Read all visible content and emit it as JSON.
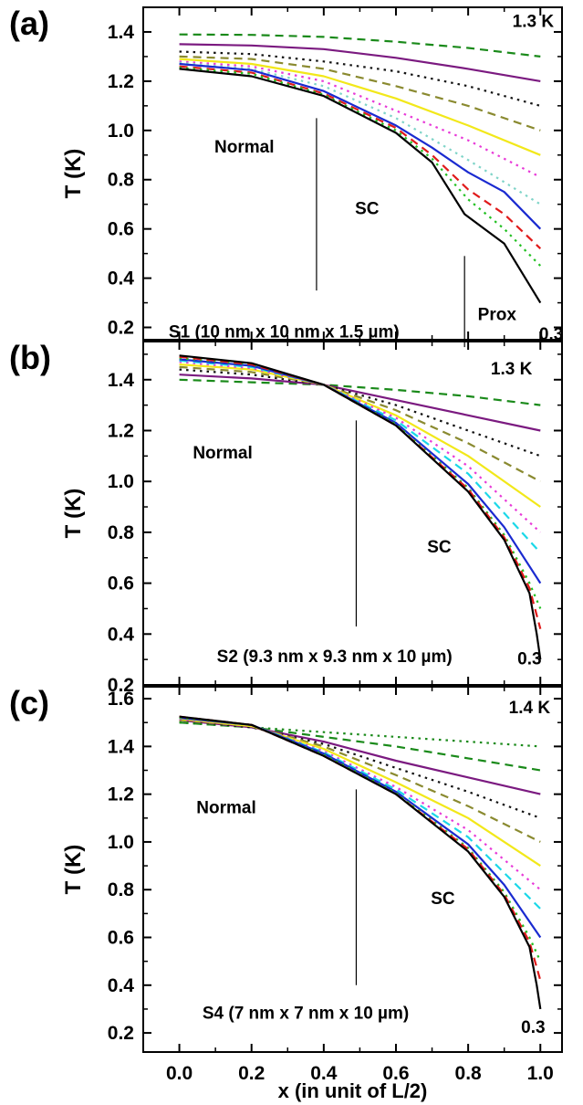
{
  "chart_data": [
    {
      "panel_label": "(a)",
      "type": "line",
      "xlabel": "",
      "ylabel": "T (K)",
      "xlim": [
        -0.1,
        1.06
      ],
      "ylim": [
        0.15,
        1.5
      ],
      "xticks": [
        0.0,
        0.2,
        0.4,
        0.6,
        0.8,
        1.0
      ],
      "yticks": [
        0.2,
        0.4,
        0.6,
        0.8,
        1.0,
        1.2,
        1.4
      ],
      "annotations": [
        {
          "text": "1.3 K",
          "x": 0.98,
          "y": 1.42
        },
        {
          "text": "Normal",
          "x": 0.18,
          "y": 0.91
        },
        {
          "text": "SC",
          "x": 0.52,
          "y": 0.66
        },
        {
          "text": "Prox",
          "x": 0.88,
          "y": 0.23
        },
        {
          "text": "S1 (10 nm x 10 nm x 1.5 µm)",
          "x": 0.29,
          "y": 0.16
        },
        {
          "text": "0.3",
          "x": 1.03,
          "y": 0.15
        }
      ],
      "vlines": [
        {
          "x": 0.38,
          "y0": 0.35,
          "y1": 1.05
        },
        {
          "x": 0.79,
          "y0": 0.12,
          "y1": 0.49
        }
      ],
      "series": [
        {
          "color": "#1a8a1a",
          "dash": "dash",
          "x": [
            0,
            0.2,
            0.4,
            0.6,
            0.8,
            1.0
          ],
          "y": [
            1.39,
            1.388,
            1.38,
            1.36,
            1.335,
            1.3
          ]
        },
        {
          "color": "#7b1a80",
          "dash": "solid",
          "x": [
            0,
            0.2,
            0.4,
            0.6,
            0.8,
            1.0
          ],
          "y": [
            1.35,
            1.345,
            1.33,
            1.295,
            1.25,
            1.2
          ]
        },
        {
          "color": "#111111",
          "dash": "dot",
          "x": [
            0,
            0.2,
            0.4,
            0.6,
            0.8,
            1.0
          ],
          "y": [
            1.32,
            1.31,
            1.28,
            1.24,
            1.18,
            1.1
          ]
        },
        {
          "color": "#8a8a30",
          "dash": "dash",
          "x": [
            0,
            0.2,
            0.4,
            0.6,
            0.8,
            1.0
          ],
          "y": [
            1.3,
            1.29,
            1.25,
            1.18,
            1.1,
            1.0
          ]
        },
        {
          "color": "#f2e81a",
          "dash": "solid",
          "x": [
            0,
            0.2,
            0.4,
            0.6,
            0.8,
            1.0
          ],
          "y": [
            1.29,
            1.27,
            1.22,
            1.13,
            1.02,
            0.9
          ]
        },
        {
          "color": "#e83ad8",
          "dash": "dot",
          "x": [
            0,
            0.2,
            0.4,
            0.6,
            0.8,
            1.0
          ],
          "y": [
            1.28,
            1.26,
            1.2,
            1.08,
            0.96,
            0.81
          ]
        },
        {
          "color": "#7fd4c8",
          "dash": "dot",
          "x": [
            0,
            0.2,
            0.4,
            0.6,
            0.8,
            1.0
          ],
          "y": [
            1.275,
            1.25,
            1.18,
            1.05,
            0.88,
            0.7
          ]
        },
        {
          "color": "#1a2ad0",
          "dash": "solid",
          "x": [
            0,
            0.2,
            0.4,
            0.6,
            0.7,
            0.8,
            0.9,
            1.0
          ],
          "y": [
            1.27,
            1.245,
            1.16,
            1.02,
            0.93,
            0.83,
            0.75,
            0.6
          ]
        },
        {
          "color": "#e01a1a",
          "dash": "dash",
          "x": [
            0,
            0.2,
            0.4,
            0.6,
            0.7,
            0.8,
            0.9,
            1.0
          ],
          "y": [
            1.26,
            1.235,
            1.15,
            1.01,
            0.9,
            0.76,
            0.66,
            0.52
          ]
        },
        {
          "color": "#22c022",
          "dash": "dot",
          "x": [
            0,
            0.2,
            0.4,
            0.6,
            0.7,
            0.8,
            0.9,
            1.0
          ],
          "y": [
            1.255,
            1.23,
            1.145,
            1.0,
            0.885,
            0.72,
            0.6,
            0.45
          ]
        },
        {
          "color": "#000000",
          "dash": "solid",
          "x": [
            0,
            0.2,
            0.4,
            0.6,
            0.7,
            0.79,
            0.9,
            1.0
          ],
          "y": [
            1.25,
            1.22,
            1.14,
            0.99,
            0.87,
            0.66,
            0.54,
            0.3
          ]
        }
      ]
    },
    {
      "panel_label": "(b)",
      "type": "line",
      "xlabel": "",
      "ylabel": "T (K)",
      "xlim": [
        -0.1,
        1.06
      ],
      "ylim": [
        0.2,
        1.55
      ],
      "xticks": [
        0.0,
        0.2,
        0.4,
        0.6,
        0.8,
        1.0
      ],
      "yticks": [
        0.2,
        0.4,
        0.6,
        0.8,
        1.0,
        1.2,
        1.4
      ],
      "annotations": [
        {
          "text": "1.3 K",
          "x": 0.92,
          "y": 1.42
        },
        {
          "text": "Normal",
          "x": 0.12,
          "y": 1.09
        },
        {
          "text": "SC",
          "x": 0.72,
          "y": 0.72
        },
        {
          "text": "S2 (9.3 nm x 9.3 nm x 10 µm)",
          "x": 0.43,
          "y": 0.29
        },
        {
          "text": "0.3",
          "x": 0.97,
          "y": 0.28
        }
      ],
      "vlines": [
        {
          "x": 0.49,
          "y0": 0.43,
          "y1": 1.24
        }
      ],
      "series": [
        {
          "color": "#1a8a1a",
          "dash": "dash",
          "x": [
            0,
            0.2,
            0.4,
            0.6,
            0.8,
            1.0
          ],
          "y": [
            1.4,
            1.39,
            1.38,
            1.36,
            1.335,
            1.3
          ]
        },
        {
          "color": "#7b1a80",
          "dash": "solid",
          "x": [
            0,
            0.2,
            0.4,
            0.6,
            0.8,
            1.0
          ],
          "y": [
            1.42,
            1.405,
            1.38,
            1.32,
            1.26,
            1.2
          ]
        },
        {
          "color": "#111111",
          "dash": "dot",
          "x": [
            0,
            0.2,
            0.4,
            0.6,
            0.8,
            1.0
          ],
          "y": [
            1.44,
            1.42,
            1.38,
            1.3,
            1.2,
            1.1
          ]
        },
        {
          "color": "#8a8a30",
          "dash": "dash",
          "x": [
            0,
            0.2,
            0.4,
            0.6,
            0.8,
            1.0
          ],
          "y": [
            1.45,
            1.43,
            1.38,
            1.28,
            1.15,
            1.0
          ]
        },
        {
          "color": "#f2e81a",
          "dash": "solid",
          "x": [
            0,
            0.2,
            0.4,
            0.6,
            0.8,
            1.0
          ],
          "y": [
            1.46,
            1.44,
            1.38,
            1.26,
            1.1,
            0.9
          ]
        },
        {
          "color": "#e83ad8",
          "dash": "dot",
          "x": [
            0,
            0.2,
            0.4,
            0.6,
            0.8,
            1.0
          ],
          "y": [
            1.47,
            1.445,
            1.38,
            1.25,
            1.06,
            0.8
          ]
        },
        {
          "color": "#1ad8e8",
          "dash": "dash",
          "x": [
            0,
            0.2,
            0.4,
            0.6,
            0.8,
            1.0
          ],
          "y": [
            1.475,
            1.45,
            1.38,
            1.24,
            1.03,
            0.72
          ]
        },
        {
          "color": "#1a2ad0",
          "dash": "solid",
          "x": [
            0,
            0.2,
            0.4,
            0.6,
            0.8,
            0.9,
            1.0
          ],
          "y": [
            1.48,
            1.455,
            1.38,
            1.23,
            0.99,
            0.82,
            0.6
          ]
        },
        {
          "color": "#22c022",
          "dash": "dot",
          "x": [
            0,
            0.2,
            0.4,
            0.6,
            0.8,
            0.9,
            0.97,
            1.0
          ],
          "y": [
            1.485,
            1.46,
            1.38,
            1.225,
            0.975,
            0.79,
            0.6,
            0.5
          ]
        },
        {
          "color": "#e01a1a",
          "dash": "dash",
          "x": [
            0,
            0.2,
            0.4,
            0.6,
            0.8,
            0.9,
            0.97,
            1.0
          ],
          "y": [
            1.49,
            1.46,
            1.38,
            1.22,
            0.97,
            0.78,
            0.58,
            0.42
          ]
        },
        {
          "color": "#000000",
          "dash": "solid",
          "x": [
            0,
            0.2,
            0.4,
            0.6,
            0.8,
            0.9,
            0.97,
            0.99,
            1.0
          ],
          "y": [
            1.495,
            1.465,
            1.38,
            1.22,
            0.96,
            0.77,
            0.56,
            0.4,
            0.3
          ]
        }
      ]
    },
    {
      "panel_label": "(c)",
      "type": "line",
      "xlabel": "x (in unit of L/2)",
      "ylabel": "T (K)",
      "xlim": [
        -0.1,
        1.06
      ],
      "ylim": [
        0.12,
        1.65
      ],
      "xticks": [
        0.0,
        0.2,
        0.4,
        0.6,
        0.8,
        1.0
      ],
      "yticks": [
        0.2,
        0.4,
        0.6,
        0.8,
        1.0,
        1.2,
        1.4,
        1.6
      ],
      "annotations": [
        {
          "text": "1.4 K",
          "x": 0.97,
          "y": 1.54
        },
        {
          "text": "Normal",
          "x": 0.13,
          "y": 1.12
        },
        {
          "text": "SC",
          "x": 0.73,
          "y": 0.74
        },
        {
          "text": "S4 (7 nm x 7 nm x 10 µm)",
          "x": 0.35,
          "y": 0.26
        },
        {
          "text": "0.3",
          "x": 0.98,
          "y": 0.2
        }
      ],
      "vlines": [
        {
          "x": 0.49,
          "y0": 0.4,
          "y1": 1.22
        }
      ],
      "series": [
        {
          "color": "#1a8a1a",
          "dash": "dot",
          "x": [
            0,
            0.2,
            0.4,
            0.6,
            0.8,
            1.0
          ],
          "y": [
            1.5,
            1.48,
            1.46,
            1.44,
            1.42,
            1.4
          ]
        },
        {
          "color": "#1a8a1a",
          "dash": "dash",
          "x": [
            0,
            0.2,
            0.4,
            0.6,
            0.8,
            1.0
          ],
          "y": [
            1.5,
            1.48,
            1.44,
            1.4,
            1.35,
            1.3
          ]
        },
        {
          "color": "#7b1a80",
          "dash": "solid",
          "x": [
            0,
            0.2,
            0.4,
            0.6,
            0.8,
            1.0
          ],
          "y": [
            1.51,
            1.48,
            1.42,
            1.34,
            1.27,
            1.2
          ]
        },
        {
          "color": "#111111",
          "dash": "dot",
          "x": [
            0,
            0.2,
            0.4,
            0.6,
            0.8,
            1.0
          ],
          "y": [
            1.51,
            1.48,
            1.41,
            1.31,
            1.21,
            1.1
          ]
        },
        {
          "color": "#8a8a30",
          "dash": "dash",
          "x": [
            0,
            0.2,
            0.4,
            0.6,
            0.8,
            1.0
          ],
          "y": [
            1.51,
            1.485,
            1.4,
            1.28,
            1.15,
            1.0
          ]
        },
        {
          "color": "#f2e81a",
          "dash": "solid",
          "x": [
            0,
            0.2,
            0.4,
            0.6,
            0.8,
            1.0
          ],
          "y": [
            1.515,
            1.485,
            1.39,
            1.25,
            1.1,
            0.9
          ]
        },
        {
          "color": "#e83ad8",
          "dash": "dot",
          "x": [
            0,
            0.2,
            0.4,
            0.6,
            0.8,
            1.0
          ],
          "y": [
            1.515,
            1.49,
            1.38,
            1.23,
            1.05,
            0.8
          ]
        },
        {
          "color": "#1ad8e8",
          "dash": "dash",
          "x": [
            0,
            0.2,
            0.4,
            0.6,
            0.8,
            1.0
          ],
          "y": [
            1.52,
            1.49,
            1.375,
            1.22,
            1.02,
            0.72
          ]
        },
        {
          "color": "#1a2ad0",
          "dash": "solid",
          "x": [
            0,
            0.2,
            0.4,
            0.6,
            0.8,
            0.9,
            1.0
          ],
          "y": [
            1.52,
            1.49,
            1.37,
            1.21,
            0.99,
            0.82,
            0.6
          ]
        },
        {
          "color": "#22c022",
          "dash": "dot",
          "x": [
            0,
            0.2,
            0.4,
            0.6,
            0.8,
            0.9,
            0.97,
            1.0
          ],
          "y": [
            1.52,
            1.49,
            1.365,
            1.205,
            0.975,
            0.79,
            0.6,
            0.5
          ]
        },
        {
          "color": "#e01a1a",
          "dash": "dash",
          "x": [
            0,
            0.2,
            0.4,
            0.6,
            0.8,
            0.9,
            0.97,
            1.0
          ],
          "y": [
            1.525,
            1.49,
            1.36,
            1.2,
            0.97,
            0.78,
            0.58,
            0.42
          ]
        },
        {
          "color": "#000000",
          "dash": "solid",
          "x": [
            0,
            0.2,
            0.4,
            0.6,
            0.8,
            0.9,
            0.97,
            0.99,
            1.0
          ],
          "y": [
            1.525,
            1.49,
            1.36,
            1.2,
            0.96,
            0.77,
            0.56,
            0.4,
            0.3
          ]
        }
      ]
    }
  ]
}
